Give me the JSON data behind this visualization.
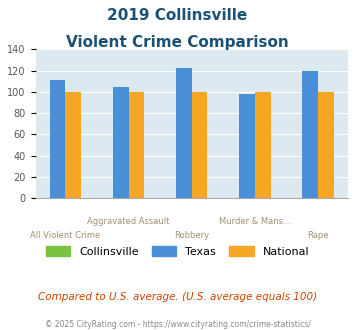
{
  "title_line1": "2019 Collinsville",
  "title_line2": "Violent Crime Comparison",
  "cat_top": [
    "",
    "Aggravated Assault",
    "",
    "Murder & Mans...",
    ""
  ],
  "cat_bottom": [
    "All Violent Crime",
    "",
    "Robbery",
    "",
    "Rape"
  ],
  "collinsville": [
    0,
    0,
    0,
    0,
    0
  ],
  "texas": [
    111,
    105,
    123,
    98,
    120
  ],
  "national": [
    100,
    100,
    100,
    100,
    100
  ],
  "collinsville_color": "#7ac242",
  "texas_color": "#4a90d9",
  "national_color": "#f5a623",
  "ylim": [
    0,
    140
  ],
  "yticks": [
    0,
    20,
    40,
    60,
    80,
    100,
    120,
    140
  ],
  "plot_bg": "#dce9f0",
  "title_color": "#1a5276",
  "xlabel_color": "#a09070",
  "legend_labels": [
    "Collinsville",
    "Texas",
    "National"
  ],
  "footnote1": "Compared to U.S. average. (U.S. average equals 100)",
  "footnote2": "© 2025 CityRating.com - https://www.cityrating.com/crime-statistics/",
  "footnote1_color": "#cc4400",
  "footnote2_color": "#888888"
}
